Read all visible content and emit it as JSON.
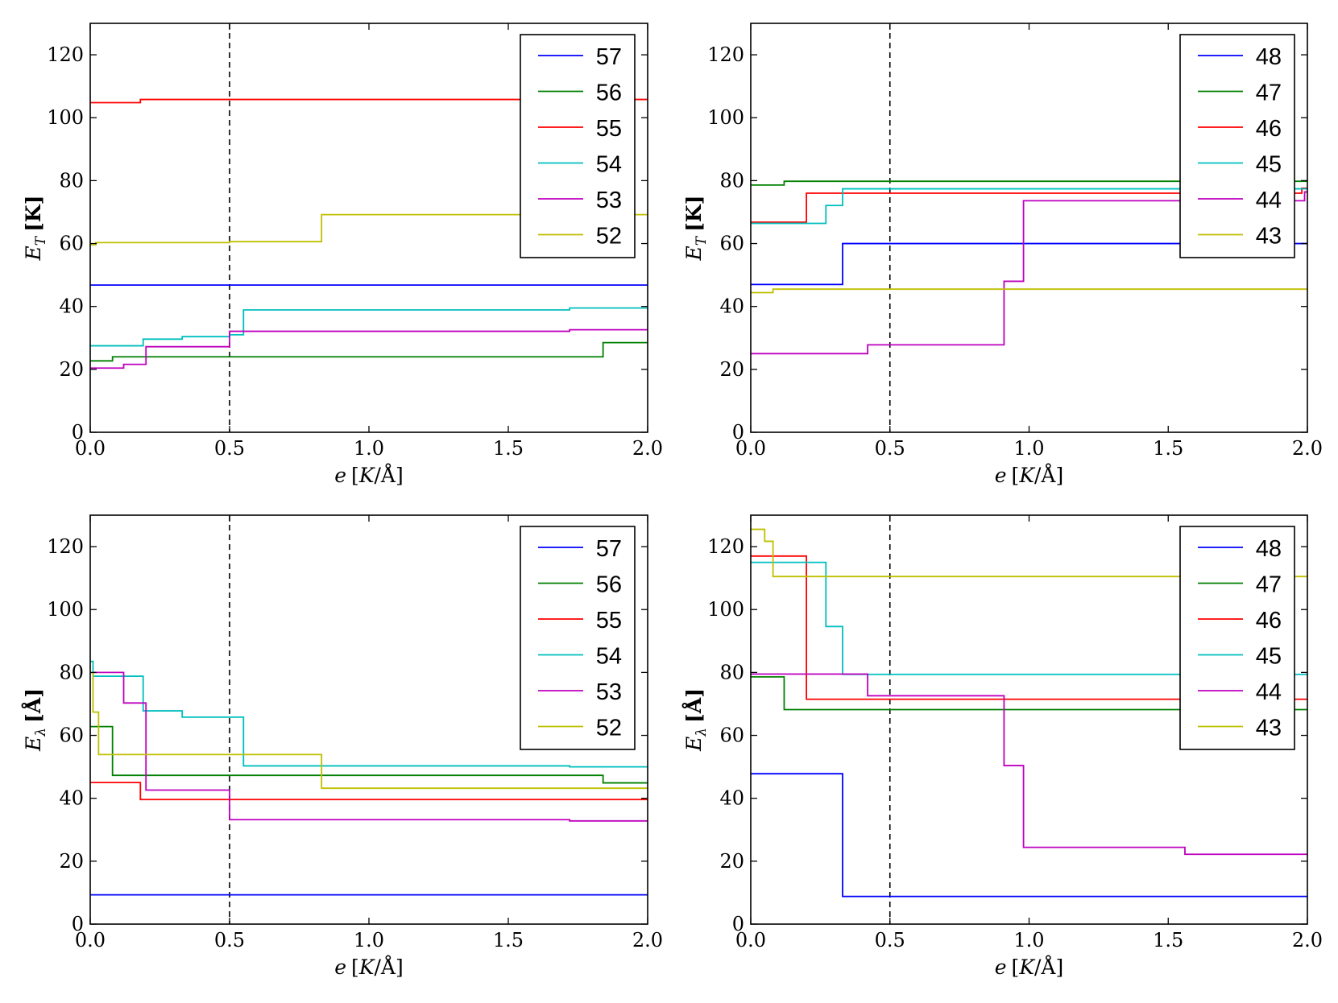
{
  "colors": {
    "blue": "#0000ff",
    "green": "#008000",
    "red": "#ff0000",
    "cyan": "#00bfbf",
    "magenta": "#bf00bf",
    "yellow": "#bfbf00"
  },
  "chart_data": [
    {
      "type": "line",
      "step": true,
      "title": "",
      "xlabel": {
        "var": "e",
        "unit_open": "[",
        "unit_num": "K",
        "unit_den": "/Å",
        "unit_close": "]"
      },
      "ylabel": {
        "base": "E",
        "sub": "T",
        "unit": "[K]"
      },
      "xlim": [
        0.0,
        2.0
      ],
      "ylim": [
        0,
        130
      ],
      "xticks": [
        "0.0",
        "0.5",
        "1.0",
        "1.5",
        "2.0"
      ],
      "yticks": [
        "0",
        "20",
        "40",
        "60",
        "80",
        "100",
        "120"
      ],
      "vline": 0.5,
      "legend_position": "top-right",
      "series": [
        {
          "name": "57",
          "color": "blue",
          "x": [
            0,
            2.0
          ],
          "y": [
            46.8,
            46.8
          ]
        },
        {
          "name": "56",
          "color": "green",
          "x": [
            0,
            0.08,
            1.84,
            2.0
          ],
          "y": [
            22.7,
            24.0,
            28.5,
            28.5
          ]
        },
        {
          "name": "55",
          "color": "red",
          "x": [
            0,
            0.18,
            2.0
          ],
          "y": [
            104.8,
            105.8,
            105.8
          ]
        },
        {
          "name": "54",
          "color": "cyan",
          "x": [
            0,
            0.19,
            0.33,
            0.5,
            0.55,
            1.72,
            2.0
          ],
          "y": [
            27.5,
            29.6,
            30.4,
            31.0,
            38.9,
            39.5,
            39.5
          ]
        },
        {
          "name": "53",
          "color": "magenta",
          "x": [
            0,
            0.12,
            0.2,
            0.5,
            1.72,
            2.0
          ],
          "y": [
            20.4,
            21.6,
            27.2,
            32.1,
            32.6,
            32.6
          ]
        },
        {
          "name": "52",
          "color": "yellow",
          "x": [
            0,
            0.02,
            0.5,
            0.83,
            2.0
          ],
          "y": [
            59.6,
            60.3,
            60.6,
            69.2,
            69.2
          ]
        }
      ]
    },
    {
      "type": "line",
      "step": true,
      "title": "",
      "xlabel": {
        "var": "e",
        "unit_open": "[",
        "unit_num": "K",
        "unit_den": "/Å",
        "unit_close": "]"
      },
      "ylabel": {
        "base": "E",
        "sub": "T",
        "unit": "[K]"
      },
      "xlim": [
        0.0,
        2.0
      ],
      "ylim": [
        0,
        130
      ],
      "xticks": [
        "0.0",
        "0.5",
        "1.0",
        "1.5",
        "2.0"
      ],
      "yticks": [
        "0",
        "20",
        "40",
        "60",
        "80",
        "100",
        "120"
      ],
      "vline": 0.5,
      "legend_position": "top-right",
      "series": [
        {
          "name": "48",
          "color": "blue",
          "x": [
            0,
            0.33,
            2.0
          ],
          "y": [
            47.0,
            60.0,
            60.0
          ]
        },
        {
          "name": "47",
          "color": "green",
          "x": [
            0,
            0.12,
            2.0
          ],
          "y": [
            78.6,
            79.8,
            80.0
          ]
        },
        {
          "name": "46",
          "color": "red",
          "x": [
            0,
            0.2,
            1.98,
            2.0
          ],
          "y": [
            66.8,
            76.0,
            77.6,
            77.6
          ]
        },
        {
          "name": "45",
          "color": "cyan",
          "x": [
            0,
            0.27,
            0.33,
            2.0
          ],
          "y": [
            66.4,
            72.1,
            77.4,
            77.4
          ]
        },
        {
          "name": "44",
          "color": "magenta",
          "x": [
            0,
            0.42,
            0.91,
            0.98,
            1.99,
            2.0
          ],
          "y": [
            25.0,
            27.8,
            48.0,
            73.6,
            76.4,
            76.4
          ]
        },
        {
          "name": "43",
          "color": "yellow",
          "x": [
            0,
            0.08,
            2.0
          ],
          "y": [
            44.4,
            45.5,
            45.5
          ]
        }
      ]
    },
    {
      "type": "line",
      "step": true,
      "title": "",
      "xlabel": {
        "var": "e",
        "unit_open": "[",
        "unit_num": "K",
        "unit_den": "/Å",
        "unit_close": "]"
      },
      "ylabel": {
        "base": "E",
        "sub": "λ",
        "unit": "[Å]"
      },
      "xlim": [
        0.0,
        2.0
      ],
      "ylim": [
        0,
        130
      ],
      "xticks": [
        "0.0",
        "0.5",
        "1.0",
        "1.5",
        "2.0"
      ],
      "yticks": [
        "0",
        "20",
        "40",
        "60",
        "80",
        "100",
        "120"
      ],
      "vline": 0.5,
      "legend_position": "top-right",
      "series": [
        {
          "name": "57",
          "color": "blue",
          "x": [
            0,
            2.0
          ],
          "y": [
            9.3,
            9.3
          ]
        },
        {
          "name": "56",
          "color": "green",
          "x": [
            0,
            0.08,
            1.84,
            2.0
          ],
          "y": [
            62.8,
            47.3,
            44.9,
            44.9
          ]
        },
        {
          "name": "55",
          "color": "red",
          "x": [
            0,
            0.18,
            0.5,
            2.0
          ],
          "y": [
            45.0,
            39.6,
            39.6,
            39.6
          ]
        },
        {
          "name": "54",
          "color": "cyan",
          "x": [
            0,
            0.01,
            0.19,
            0.33,
            0.55,
            1.72,
            2.0
          ],
          "y": [
            83.5,
            78.8,
            67.8,
            65.8,
            50.3,
            50.0,
            50.0
          ]
        },
        {
          "name": "53",
          "color": "magenta",
          "x": [
            0,
            0.12,
            0.2,
            0.5,
            1.72,
            2.0
          ],
          "y": [
            80.0,
            70.3,
            42.6,
            33.2,
            32.8,
            32.8
          ]
        },
        {
          "name": "52",
          "color": "yellow",
          "x": [
            0,
            0.01,
            0.03,
            0.83,
            2.0
          ],
          "y": [
            80.0,
            67.4,
            53.9,
            43.2,
            43.2
          ]
        }
      ]
    },
    {
      "type": "line",
      "step": true,
      "title": "",
      "xlabel": {
        "var": "e",
        "unit_open": "[",
        "unit_num": "K",
        "unit_den": "/Å",
        "unit_close": "]"
      },
      "ylabel": {
        "base": "E",
        "sub": "λ",
        "unit": "[Å]"
      },
      "xlim": [
        0.0,
        2.0
      ],
      "ylim": [
        0,
        130
      ],
      "xticks": [
        "0.0",
        "0.5",
        "1.0",
        "1.5",
        "2.0"
      ],
      "yticks": [
        "0",
        "20",
        "40",
        "60",
        "80",
        "100",
        "120"
      ],
      "vline": 0.5,
      "legend_position": "top-right",
      "series": [
        {
          "name": "48",
          "color": "blue",
          "x": [
            0,
            0.33,
            2.0
          ],
          "y": [
            47.8,
            8.8,
            8.8
          ]
        },
        {
          "name": "47",
          "color": "green",
          "x": [
            0,
            0.12,
            2.0
          ],
          "y": [
            78.6,
            68.2,
            68.2
          ]
        },
        {
          "name": "46",
          "color": "red",
          "x": [
            0,
            0.2,
            2.0
          ],
          "y": [
            117.0,
            71.5,
            71.5
          ]
        },
        {
          "name": "45",
          "color": "cyan",
          "x": [
            0,
            0.27,
            0.33,
            2.0
          ],
          "y": [
            115.0,
            94.6,
            79.4,
            79.4
          ]
        },
        {
          "name": "44",
          "color": "magenta",
          "x": [
            0,
            0.42,
            0.91,
            0.98,
            1.56,
            2.0
          ],
          "y": [
            79.5,
            72.6,
            50.4,
            24.4,
            22.2,
            22.2
          ]
        },
        {
          "name": "43",
          "color": "yellow",
          "x": [
            0,
            0.05,
            0.08,
            2.0
          ],
          "y": [
            125.5,
            121.7,
            110.5,
            110.5
          ]
        }
      ]
    }
  ]
}
